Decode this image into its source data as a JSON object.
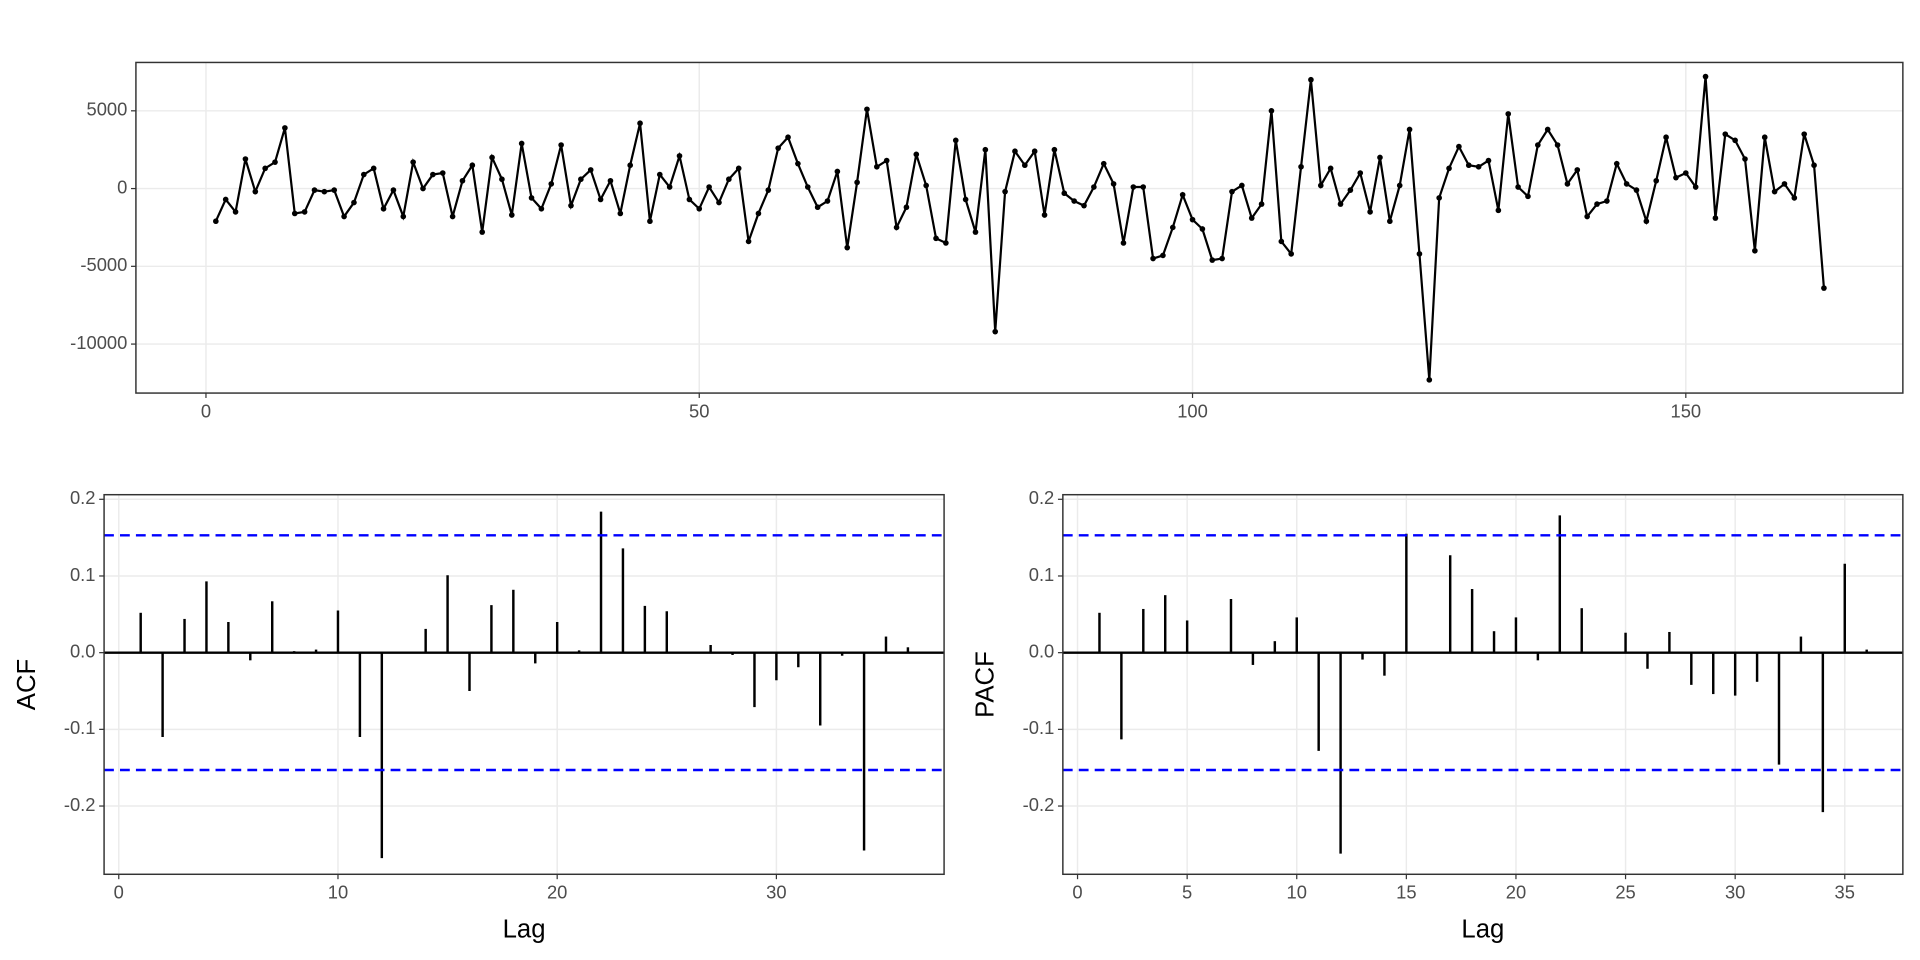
{
  "chart_data": [
    {
      "type": "line",
      "color": "#000000",
      "x": [
        1,
        2,
        3,
        4,
        5,
        6,
        7,
        8,
        9,
        10,
        11,
        12,
        13,
        14,
        15,
        16,
        17,
        18,
        19,
        20,
        21,
        22,
        23,
        24,
        25,
        26,
        27,
        28,
        29,
        30,
        31,
        32,
        33,
        34,
        35,
        36,
        37,
        38,
        39,
        40,
        41,
        42,
        43,
        44,
        45,
        46,
        47,
        48,
        49,
        50,
        51,
        52,
        53,
        54,
        55,
        56,
        57,
        58,
        59,
        60,
        61,
        62,
        63,
        64,
        65,
        66,
        67,
        68,
        69,
        70,
        71,
        72,
        73,
        74,
        75,
        76,
        77,
        78,
        79,
        80,
        81,
        82,
        83,
        84,
        85,
        86,
        87,
        88,
        89,
        90,
        91,
        92,
        93,
        94,
        95,
        96,
        97,
        98,
        99,
        100,
        101,
        102,
        103,
        104,
        105,
        106,
        107,
        108,
        109,
        110,
        111,
        112,
        113,
        114,
        115,
        116,
        117,
        118,
        119,
        120,
        121,
        122,
        123,
        124,
        125,
        126,
        127,
        128,
        129,
        130,
        131,
        132,
        133,
        134,
        135,
        136,
        137,
        138,
        139,
        140,
        141,
        142,
        143,
        144,
        145,
        146,
        147,
        148,
        149,
        150,
        151,
        152,
        153,
        154,
        155,
        156,
        157,
        158,
        159,
        160,
        161,
        162,
        163,
        164
      ],
      "values": [
        -2100,
        -700,
        -1500,
        1900,
        -200,
        1300,
        1700,
        3900,
        -1600,
        -1500,
        -100,
        -200,
        -100,
        -1800,
        -900,
        900,
        1300,
        -1300,
        -100,
        -1800,
        1700,
        0,
        900,
        1000,
        -1800,
        500,
        1500,
        -2800,
        2000,
        600,
        -1700,
        2900,
        -600,
        -1300,
        300,
        2800,
        -1100,
        600,
        1200,
        -700,
        500,
        -1600,
        1500,
        4200,
        -2100,
        900,
        100,
        2100,
        -700,
        -1300,
        100,
        -900,
        600,
        1300,
        -3400,
        -1600,
        -100,
        2600,
        3300,
        1600,
        100,
        -1200,
        -800,
        1100,
        -3800,
        400,
        5100,
        1400,
        1800,
        -2500,
        -1200,
        2200,
        200,
        -3200,
        -3500,
        3100,
        -700,
        -2800,
        2500,
        -9200,
        -200,
        2400,
        1500,
        2400,
        -1700,
        2500,
        -300,
        -800,
        -1100,
        100,
        1600,
        300,
        -3500,
        100,
        100,
        -4500,
        -4300,
        -2500,
        -400,
        -2000,
        -2600,
        -4600,
        -4500,
        -200,
        200,
        -1900,
        -1000,
        5000,
        -3400,
        -4200,
        1400,
        7000,
        200,
        1300,
        -1000,
        -100,
        1000,
        -1500,
        2000,
        -2100,
        200,
        3800,
        -4200,
        -12300,
        -600,
        1300,
        2700,
        1500,
        1400,
        1800,
        -1400,
        4800,
        100,
        -500,
        2800,
        3800,
        2800,
        300,
        1200,
        -1800,
        -1000,
        -800,
        1600,
        300,
        -100,
        -2100,
        500,
        3300,
        700,
        1000,
        100,
        7200,
        -1900,
        3500,
        3100,
        1900,
        -4000,
        3300,
        -200,
        300,
        -600,
        3500,
        1500,
        -6400
      ],
      "xlim": [
        -7.1,
        172
      ],
      "ylim": [
        -13150,
        8110
      ],
      "xticks": [
        0,
        50,
        100,
        150
      ],
      "yticks": [
        -10000,
        -5000,
        0,
        5000
      ],
      "grid": true
    },
    {
      "type": "bar",
      "color": "#000000",
      "ylabel": "ACF",
      "xlabel": "Lag",
      "x": [
        1,
        2,
        3,
        4,
        5,
        6,
        7,
        8,
        9,
        10,
        11,
        12,
        13,
        14,
        15,
        16,
        17,
        18,
        19,
        20,
        21,
        22,
        23,
        24,
        25,
        26,
        27,
        28,
        29,
        30,
        31,
        32,
        33,
        34,
        35,
        36
      ],
      "values": [
        0.052,
        -0.11,
        0.044,
        0.093,
        0.04,
        -0.01,
        0.067,
        0.002,
        0.004,
        0.055,
        -0.11,
        -0.268,
        -0.001,
        0.031,
        0.101,
        -0.05,
        0.062,
        0.082,
        -0.014,
        0.04,
        0.003,
        0.184,
        0.136,
        0.061,
        0.054,
        -0.001,
        0.01,
        -0.003,
        -0.071,
        -0.036,
        -0.019,
        -0.095,
        -0.004,
        -0.258,
        0.021,
        0.007
      ],
      "ci_lines": [
        0.153,
        -0.153
      ],
      "ci_color": "#0000ff",
      "xlim": [
        -0.67,
        37.65
      ],
      "ylim": [
        -0.289,
        0.206
      ],
      "xticks": [
        0,
        10,
        20,
        30
      ],
      "yticks": [
        -0.2,
        -0.1,
        {
          "value": 0,
          "label": "0.0"
        },
        0.1,
        0.2
      ],
      "grid": true
    },
    {
      "type": "bar",
      "color": "#000000",
      "ylabel": "PACF",
      "xlabel": "Lag",
      "x": [
        1,
        2,
        3,
        4,
        5,
        6,
        7,
        8,
        9,
        10,
        11,
        12,
        13,
        14,
        15,
        16,
        17,
        18,
        19,
        20,
        21,
        22,
        23,
        24,
        25,
        26,
        27,
        28,
        29,
        30,
        31,
        32,
        33,
        34,
        35,
        36
      ],
      "values": [
        0.052,
        -0.113,
        0.057,
        0.075,
        0.042,
        0.001,
        0.07,
        -0.016,
        0.015,
        0.046,
        -0.128,
        -0.262,
        -0.009,
        -0.03,
        0.155,
        0.001,
        0.127,
        0.083,
        0.028,
        0.046,
        -0.01,
        0.179,
        0.058,
        0.001,
        0.026,
        -0.021,
        0.027,
        -0.042,
        -0.054,
        -0.056,
        -0.038,
        -0.146,
        0.021,
        -0.208,
        0.116,
        0.004
      ],
      "ci_lines": [
        0.153,
        -0.153
      ],
      "ci_color": "#0000ff",
      "xlim": [
        -0.67,
        37.65
      ],
      "ylim": [
        -0.289,
        0.206
      ],
      "xticks": [
        0,
        5,
        10,
        15,
        20,
        25,
        30,
        35
      ],
      "yticks": [
        -0.2,
        -0.1,
        {
          "value": 0,
          "label": "0.0"
        },
        0.1,
        0.2
      ],
      "grid": true
    }
  ]
}
